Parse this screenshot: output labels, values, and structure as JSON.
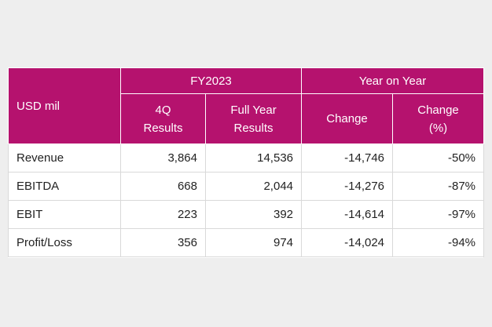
{
  "table": {
    "corner_label": "USD mil",
    "groups": [
      {
        "label": "FY2023"
      },
      {
        "label": "Year on Year"
      }
    ],
    "columns": [
      {
        "line1": "4Q",
        "line2": "Results"
      },
      {
        "line1": "Full Year",
        "line2": "Results"
      },
      {
        "line1": "Change",
        "line2": ""
      },
      {
        "line1": "Change",
        "line2": "(%)"
      }
    ],
    "rows": [
      {
        "metric": "Revenue",
        "q4": "3,864",
        "full_year": "14,536",
        "change": "-14,746",
        "change_pct": "-50%"
      },
      {
        "metric": "EBITDA",
        "q4": "668",
        "full_year": "2,044",
        "change": "-14,276",
        "change_pct": "-87%"
      },
      {
        "metric": "EBIT",
        "q4": "223",
        "full_year": "392",
        "change": "-14,614",
        "change_pct": "-97%"
      },
      {
        "metric": "Profit/Loss",
        "q4": "356",
        "full_year": "974",
        "change": "-14,024",
        "change_pct": "-94%"
      }
    ]
  },
  "colors": {
    "header_bg": "#b5126e",
    "header_text": "#ffffff",
    "page_bg": "#eeeeee"
  }
}
